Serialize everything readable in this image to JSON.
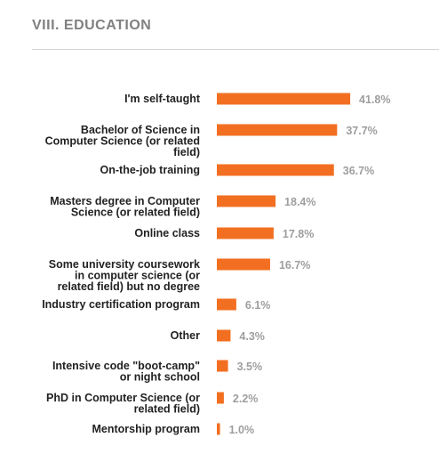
{
  "section_title": "VIII. EDUCATION",
  "colors": {
    "bar": "#f26f21",
    "value_label": "#9e9e9e",
    "title": "#808080",
    "category_label": "#222222"
  },
  "chart_data": {
    "type": "bar",
    "orientation": "horizontal",
    "title": "",
    "xlabel": "",
    "ylabel": "",
    "unit": "%",
    "grid": false,
    "legend": "none",
    "xlim": [
      0,
      45
    ],
    "categories": [
      [
        "I'm self-taught"
      ],
      [
        "Bachelor of Science in",
        "Computer Science (or related",
        "field)"
      ],
      [
        "On-the-job training"
      ],
      [
        "Masters degree in Computer",
        "Science (or related field)"
      ],
      [
        "Online class"
      ],
      [
        "Some university coursework",
        "in computer science (or",
        "related field) but no degree"
      ],
      [
        "Industry certification program"
      ],
      [
        "Other"
      ],
      [
        "Intensive code \"boot-camp\"",
        "or night school"
      ],
      [
        "PhD in Computer Science (or",
        "related field)"
      ],
      [
        "Mentorship program"
      ]
    ],
    "values": [
      41.8,
      37.7,
      36.7,
      18.4,
      17.8,
      16.7,
      6.1,
      4.3,
      3.5,
      2.2,
      1.0
    ],
    "value_labels": [
      "41.8%",
      "37.7%",
      "36.7%",
      "18.4%",
      "17.8%",
      "16.7%",
      "6.1%",
      "4.3%",
      "3.5%",
      "2.2%",
      "1.0%"
    ]
  }
}
